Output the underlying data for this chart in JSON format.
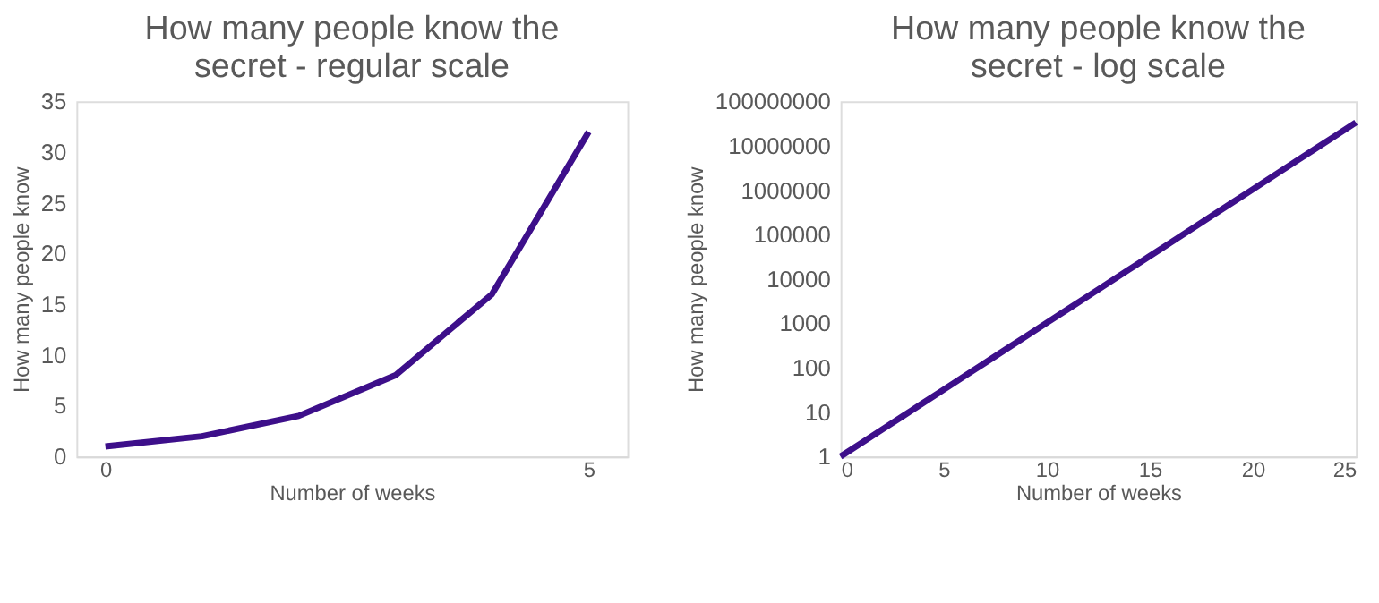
{
  "chart_data": [
    {
      "type": "line",
      "title": "How many people know the secret - regular scale",
      "xlabel": "Number of weeks",
      "ylabel": "How many people know",
      "x": [
        0,
        1,
        2,
        3,
        4,
        5
      ],
      "series": [
        {
          "color": "#3d0f8a",
          "values": [
            1,
            2,
            4,
            8,
            16,
            32
          ]
        }
      ],
      "xlim": [
        -0.3,
        5.4
      ],
      "xticks": [
        0,
        5
      ],
      "ylim": [
        0,
        35
      ],
      "yticks": [
        0,
        5,
        10,
        15,
        20,
        25,
        30,
        35
      ],
      "grid": false,
      "marker": "none",
      "line_style": "solid"
    },
    {
      "type": "line",
      "title": "How many people know the secret - log scale",
      "xlabel": "Number of weeks",
      "ylabel": "How many people know",
      "x": [
        0,
        1,
        2,
        3,
        4,
        5,
        6,
        7,
        8,
        9,
        10,
        11,
        12,
        13,
        14,
        15,
        16,
        17,
        18,
        19,
        20,
        21,
        22,
        23,
        24,
        25
      ],
      "series": [
        {
          "color": "#3d0f8a",
          "values": [
            1,
            2,
            4,
            8,
            16,
            32,
            64,
            128,
            256,
            512,
            1024,
            2048,
            4096,
            8192,
            16384,
            32768,
            65536,
            131072,
            262144,
            524288,
            1048576,
            2097152,
            4194304,
            8388608,
            16777216,
            33554432
          ]
        }
      ],
      "xlim": [
        0,
        25
      ],
      "xticks": [
        0,
        5,
        10,
        15,
        20,
        25
      ],
      "ylim": [
        1,
        100000000
      ],
      "yticks": [
        1,
        10,
        100,
        1000,
        10000,
        100000,
        1000000,
        10000000,
        100000000
      ],
      "log": "y",
      "grid": false,
      "marker": "none",
      "line_style": "solid"
    }
  ]
}
